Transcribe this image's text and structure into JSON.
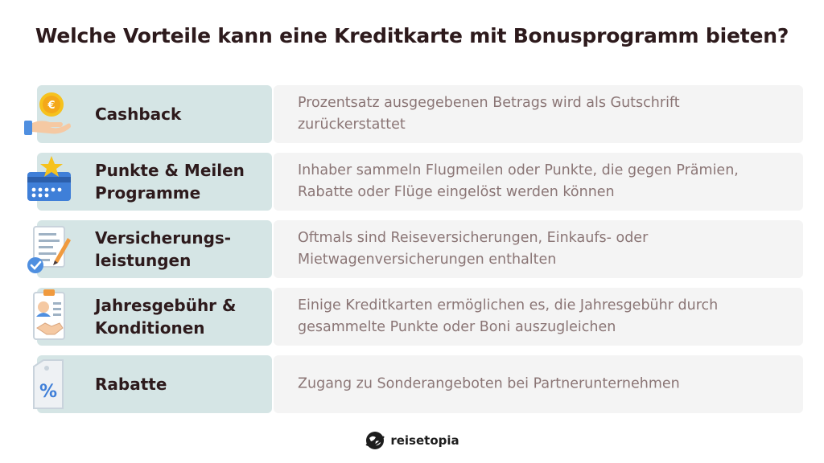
{
  "title": "Welche Vorteile kann eine Kreditkarte mit Bonusprogramm bieten?",
  "rows": [
    {
      "icon": "coin-hand-icon",
      "label": "Cashback",
      "desc": "Prozentsatz ausgegebenen Betrags wird als Gutschrift zurückerstattet"
    },
    {
      "icon": "star-card-icon",
      "label": "Punkte & Meilen Programme",
      "desc": "Inhaber sammeln Flugmeilen oder Punkte, die gegen Prämien, Rabatte oder Flüge eingelöst werden können"
    },
    {
      "icon": "insurance-document-icon",
      "label": "Versicherungs-leistungen",
      "desc": "Oftmals sind Reiseversicherungen, Einkaufs- oder Mietwagenversicherungen enthalten"
    },
    {
      "icon": "contract-handshake-icon",
      "label": "Jahresgebühr & Konditionen",
      "desc": "Einige Kreditkarten ermöglichen es, die Jahresgebühr durch gesammelte Punkte oder Boni auszugleichen"
    },
    {
      "icon": "discount-tag-icon",
      "label": "Rabatte",
      "desc": "Zugang zu Sonderangeboten bei Partnerunternehmen"
    }
  ],
  "icon_symbols": {
    "coin": "€",
    "percent": "%"
  },
  "footer": {
    "brand": "reisetopia"
  }
}
